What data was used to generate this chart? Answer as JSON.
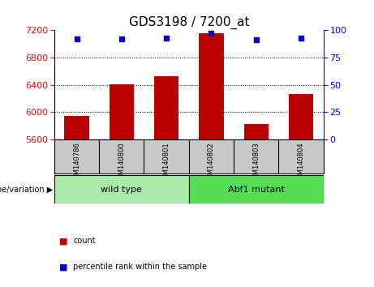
{
  "title": "GDS3198 / 7200_at",
  "samples": [
    "GSM140786",
    "GSM140800",
    "GSM140801",
    "GSM140802",
    "GSM140803",
    "GSM140804"
  ],
  "counts": [
    5950,
    6410,
    6530,
    7160,
    5820,
    6270
  ],
  "percentile_ranks": [
    92,
    92,
    93,
    97,
    91,
    93
  ],
  "ylim_left": [
    5600,
    7200
  ],
  "ylim_right": [
    0,
    100
  ],
  "yticks_left": [
    5600,
    6000,
    6400,
    6800,
    7200
  ],
  "yticks_right": [
    0,
    25,
    50,
    75,
    100
  ],
  "bar_color": "#bb0000",
  "dot_color": "#0000cc",
  "bg_plot": "#ffffff",
  "bg_label_area": "#c8c8c8",
  "bg_wildtype": "#aaeaaa",
  "bg_mutant": "#55dd55",
  "groups": [
    {
      "label": "wild type",
      "indices": [
        0,
        1,
        2
      ]
    },
    {
      "label": "Abf1 mutant",
      "indices": [
        3,
        4,
        5
      ]
    }
  ],
  "group_label_prefix": "genotype/variation",
  "legend_count_label": "count",
  "legend_pct_label": "percentile rank within the sample",
  "title_fontsize": 11,
  "tick_fontsize": 8,
  "sample_fontsize": 6,
  "group_fontsize": 8,
  "legend_fontsize": 7
}
